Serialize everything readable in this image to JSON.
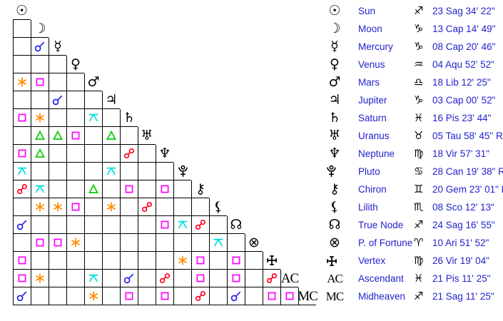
{
  "colors": {
    "background": "#ffffff",
    "grid_line": "#000000",
    "glyph_black": "#000000",
    "label_text": "#2222cc",
    "aspects": {
      "conjunction": "#2222ee",
      "sextile": "#ff8c00",
      "square": "#ff00ff",
      "trine": "#00cc00",
      "opposition": "#ff0022",
      "quincunx": "#00dddd"
    }
  },
  "planets": [
    {
      "id": "sun",
      "name": "Sun",
      "sign": "Sag",
      "position": "23 Sag 34' 22\""
    },
    {
      "id": "moon",
      "name": "Moon",
      "sign": "Cap",
      "position": "13 Cap 14' 49\""
    },
    {
      "id": "mercury",
      "name": "Mercury",
      "sign": "Cap",
      "position": "08 Cap 20' 46\""
    },
    {
      "id": "venus",
      "name": "Venus",
      "sign": "Aqu",
      "position": "04 Aqu 52' 52\""
    },
    {
      "id": "mars",
      "name": "Mars",
      "sign": "Lib",
      "position": "18 Lib 12' 25\""
    },
    {
      "id": "jupiter",
      "name": "Jupiter",
      "sign": "Cap",
      "position": "03 Cap 00' 52\""
    },
    {
      "id": "saturn",
      "name": "Saturn",
      "sign": "Pis",
      "position": "16 Pis 23' 44\""
    },
    {
      "id": "uranus",
      "name": "Uranus",
      "sign": "Tau",
      "position": "05 Tau 58' 45\" R"
    },
    {
      "id": "neptune",
      "name": "Neptune",
      "sign": "Vir",
      "position": "18 Vir 57' 31\""
    },
    {
      "id": "pluto",
      "name": "Pluto",
      "sign": "Can",
      "position": "28 Can 19' 38\" R"
    },
    {
      "id": "chiron",
      "name": "Chiron",
      "sign": "Gem",
      "position": "20 Gem 23' 01\" R"
    },
    {
      "id": "lilith",
      "name": "Lilith",
      "sign": "Sco",
      "position": "08 Sco 12' 13\""
    },
    {
      "id": "true-node",
      "name": "True Node",
      "sign": "Sag",
      "position": "24 Sag 16' 55\""
    },
    {
      "id": "p-of-fortune",
      "name": "P. of Fortune",
      "sign": "Ari",
      "position": "10 Ari 51' 52\""
    },
    {
      "id": "vertex",
      "name": "Vertex",
      "sign": "Vir",
      "position": "26 Vir 19' 04\""
    },
    {
      "id": "ascendant",
      "name": "Ascendant",
      "sign": "Pis",
      "position": "21 Pis 11' 25\"",
      "label": "AC"
    },
    {
      "id": "midheaven",
      "name": "Midheaven",
      "sign": "Sag",
      "position": "21 Sag 11' 25\"",
      "label": "MC"
    }
  ],
  "grid": {
    "rows": [
      {
        "planet": "sun",
        "aspects": []
      },
      {
        "planet": "moon",
        "aspects": [
          null
        ]
      },
      {
        "planet": "mercury",
        "aspects": [
          null,
          "conjunction"
        ]
      },
      {
        "planet": "venus",
        "aspects": [
          null,
          null,
          null
        ]
      },
      {
        "planet": "mars",
        "aspects": [
          "sextile",
          "square",
          null,
          null
        ]
      },
      {
        "planet": "jupiter",
        "aspects": [
          null,
          null,
          "conjunction",
          null,
          null
        ]
      },
      {
        "planet": "saturn",
        "aspects": [
          "square",
          "sextile",
          null,
          null,
          "quincunx",
          null
        ]
      },
      {
        "planet": "uranus",
        "aspects": [
          null,
          "trine",
          "trine",
          "square",
          null,
          "trine",
          null
        ]
      },
      {
        "planet": "neptune",
        "aspects": [
          "square",
          "trine",
          null,
          null,
          null,
          null,
          "opposition",
          null
        ]
      },
      {
        "planet": "pluto",
        "aspects": [
          "quincunx",
          null,
          null,
          null,
          null,
          "quincunx",
          null,
          null,
          null
        ]
      },
      {
        "planet": "chiron",
        "aspects": [
          "opposition",
          "quincunx",
          null,
          null,
          "trine",
          null,
          "square",
          null,
          "square",
          null
        ]
      },
      {
        "planet": "lilith",
        "aspects": [
          null,
          "sextile",
          "sextile",
          "square",
          null,
          "sextile",
          null,
          "opposition",
          null,
          null,
          null
        ]
      },
      {
        "planet": "true-node",
        "aspects": [
          "conjunction",
          null,
          null,
          null,
          null,
          null,
          null,
          null,
          "square",
          "quincunx",
          "opposition",
          null
        ]
      },
      {
        "planet": "p-of-fortune",
        "aspects": [
          null,
          "square",
          "square",
          "sextile",
          null,
          null,
          null,
          null,
          null,
          null,
          null,
          "quincunx",
          null
        ]
      },
      {
        "planet": "vertex",
        "aspects": [
          "square",
          null,
          null,
          null,
          null,
          null,
          null,
          null,
          null,
          "sextile",
          "square",
          null,
          "square",
          null
        ]
      },
      {
        "planet": "ascendant",
        "aspects": [
          "square",
          "sextile",
          null,
          null,
          "quincunx",
          null,
          "conjunction",
          null,
          "opposition",
          null,
          "square",
          null,
          "square",
          null,
          "opposition"
        ]
      },
      {
        "planet": "midheaven",
        "aspects": [
          "conjunction",
          null,
          null,
          null,
          "sextile",
          null,
          "square",
          null,
          "square",
          null,
          "opposition",
          null,
          "conjunction",
          null,
          "square",
          "square"
        ]
      }
    ]
  }
}
